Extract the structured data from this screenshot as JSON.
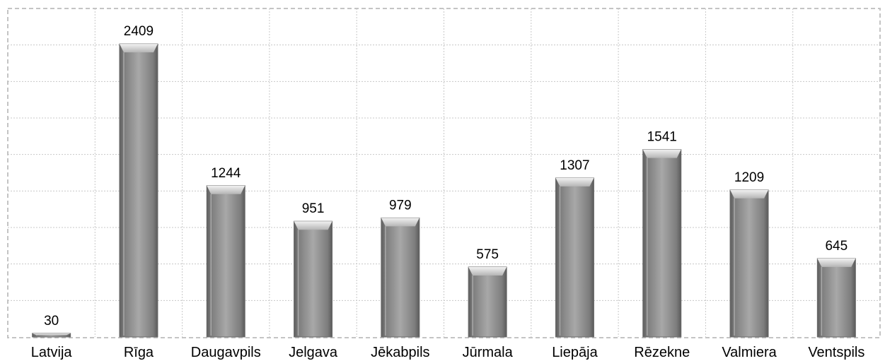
{
  "chart_data": {
    "type": "bar",
    "title": "",
    "xlabel": "",
    "ylabel": "",
    "categories": [
      "Latvija",
      "Rīga",
      "Daugavpils",
      "Jelgava",
      "Jēkabpils",
      "Jūrmala",
      "Liepāja",
      "Rēzekne",
      "Valmiera",
      "Ventspils"
    ],
    "values": [
      30,
      2409,
      1244,
      951,
      979,
      575,
      1307,
      1541,
      1209,
      645
    ],
    "ylim": [
      0,
      2700
    ],
    "grid": true,
    "data_labels": true,
    "legend": "none",
    "colors": {
      "bar": "#9e9e9e",
      "bar_edge": "#6b6b6b",
      "grid": "#c8c8c8",
      "frame": "#c4c4c4"
    }
  }
}
